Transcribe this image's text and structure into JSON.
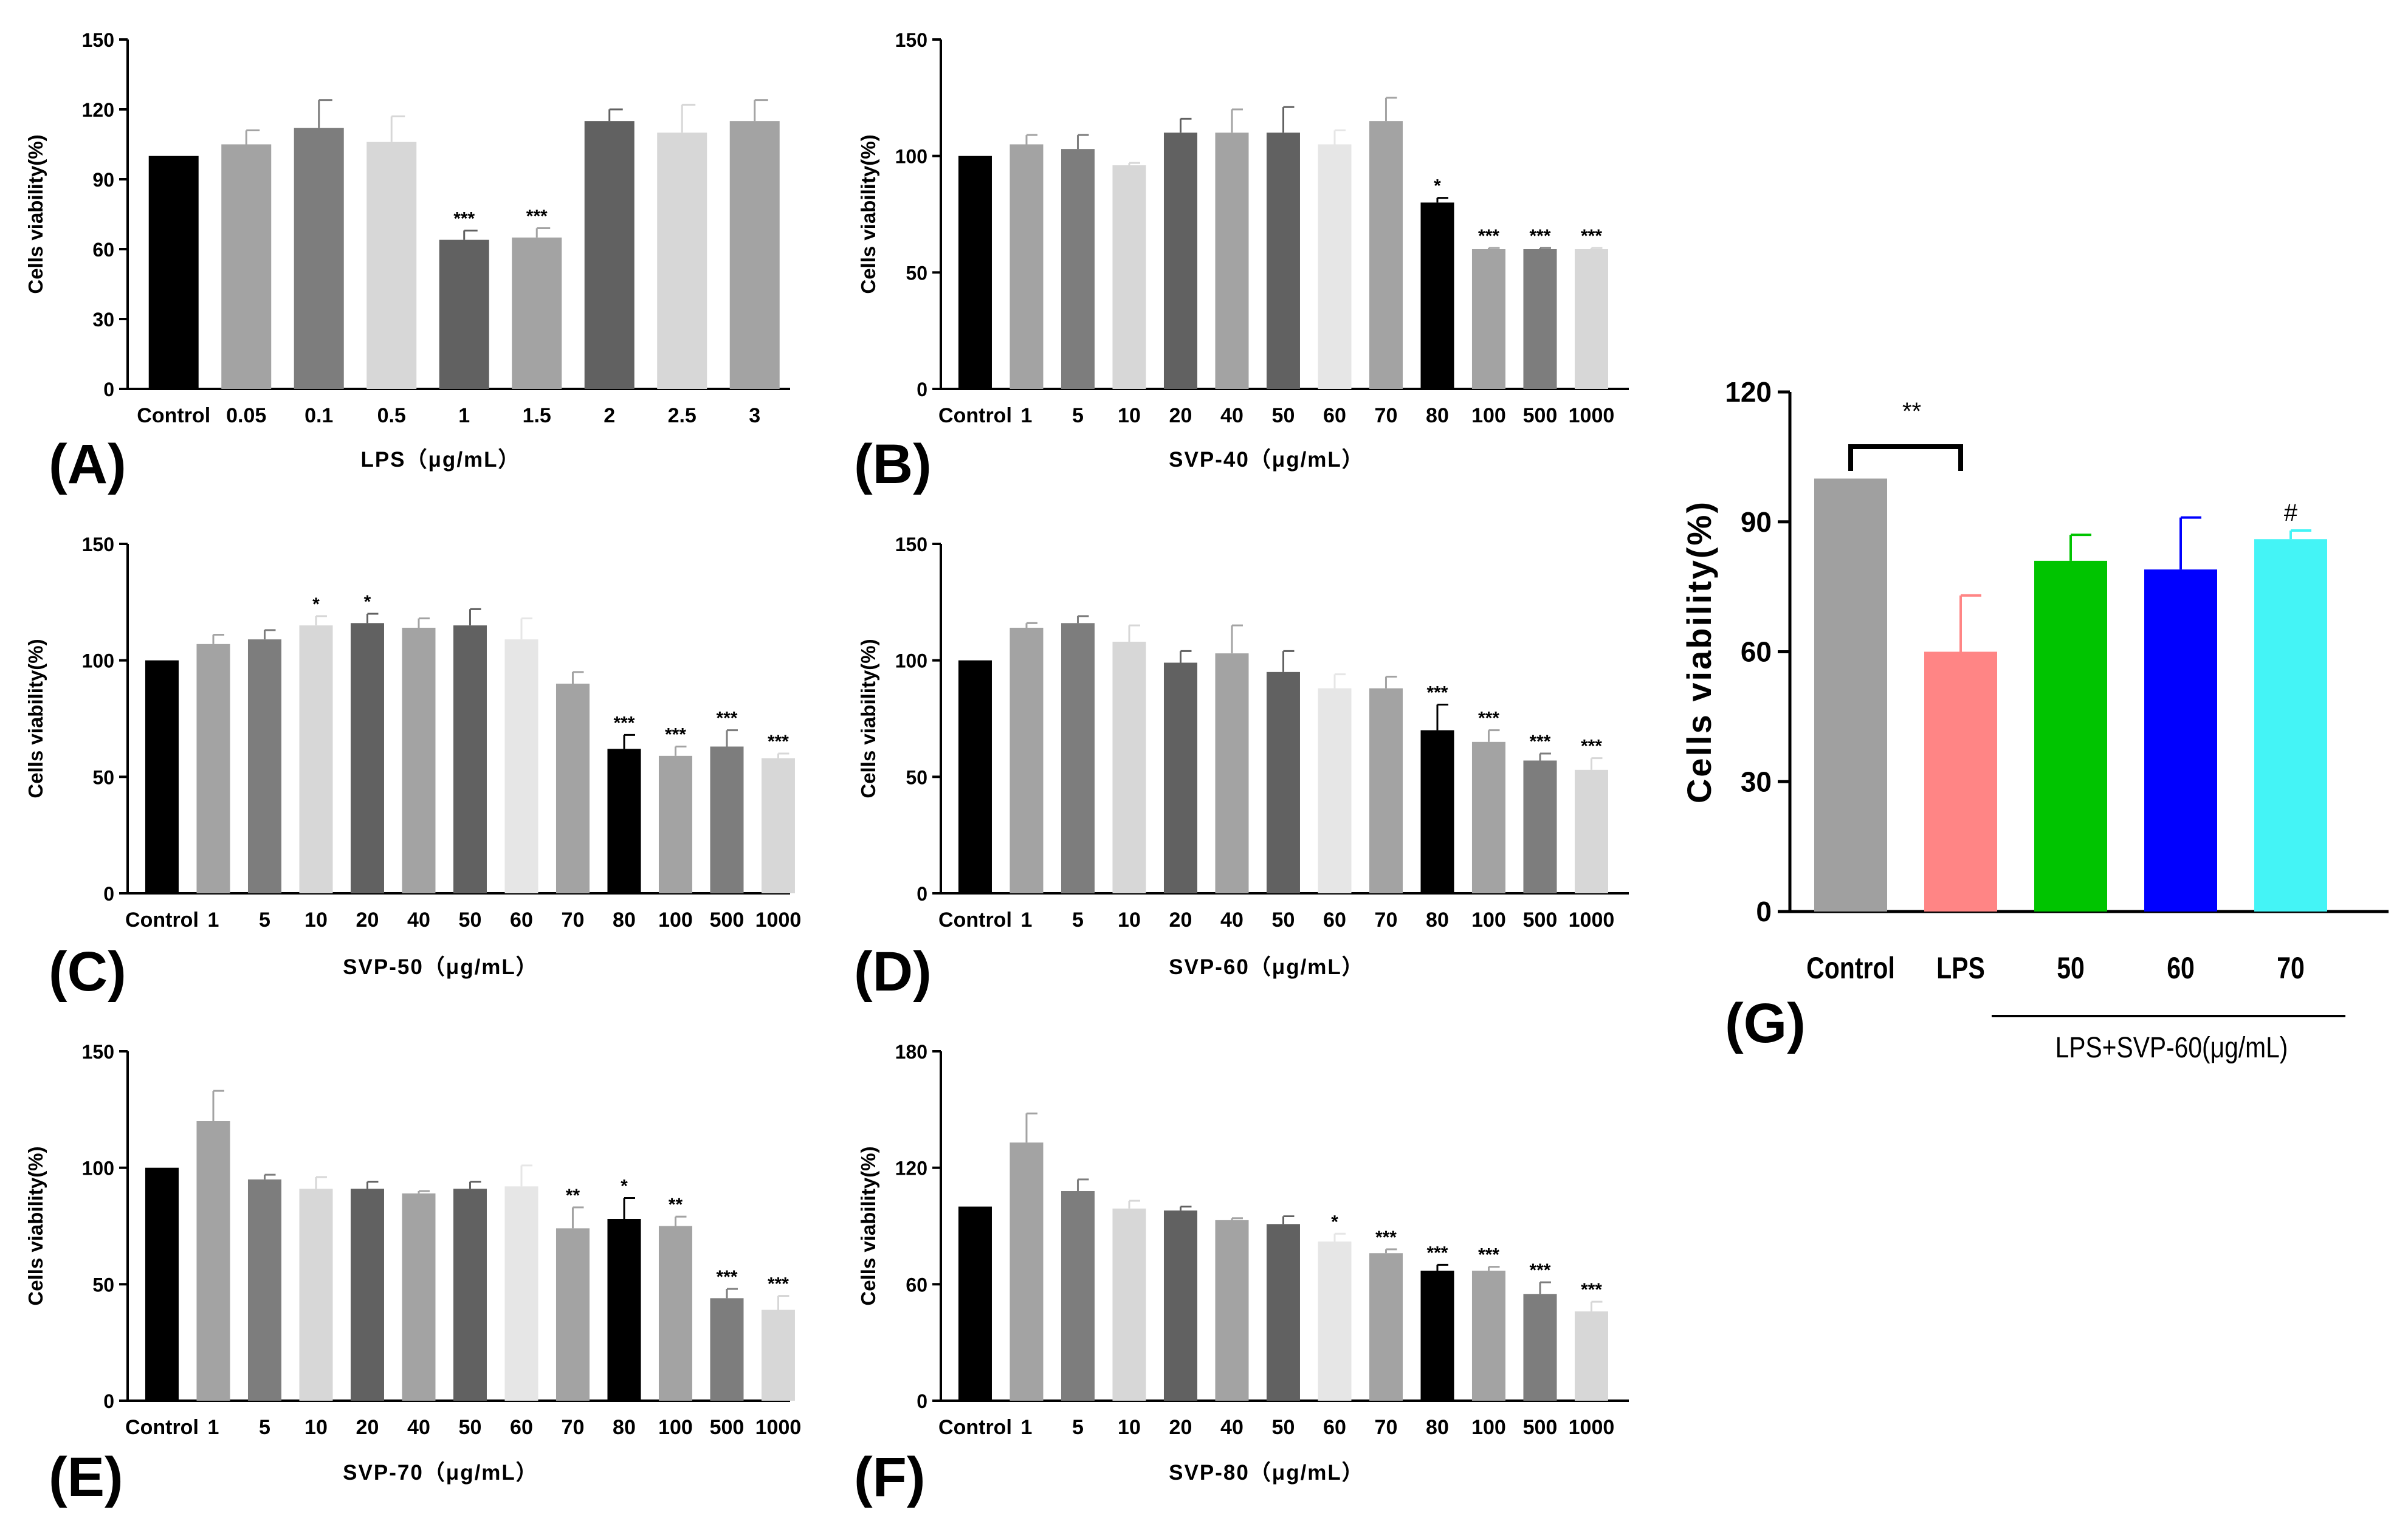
{
  "chart_data": [
    {
      "type": "bar",
      "panel": "(A)",
      "xlabel": "LPS（μg/mL）",
      "ylabel": "Cells viability(%)",
      "ylim": [
        0,
        150
      ],
      "yticks": [
        0,
        30,
        60,
        90,
        120,
        150
      ],
      "categories": [
        "Control",
        "0.05",
        "0.1",
        "0.5",
        "1",
        "1.5",
        "2",
        "2.5",
        "3"
      ],
      "values": [
        100,
        105,
        112,
        106,
        64,
        65,
        115,
        110,
        115
      ],
      "errors": [
        0,
        6,
        12,
        11,
        4,
        4,
        5,
        12,
        9
      ],
      "significance": [
        "",
        "",
        "",
        "",
        "***",
        "***",
        "",
        "",
        ""
      ],
      "colors": [
        "#000000",
        "#a3a3a3",
        "#7d7d7d",
        "#d7d7d7",
        "#616161",
        "#a3a3a3",
        "#616161",
        "#d7d7d7",
        "#a3a3a3"
      ]
    },
    {
      "type": "bar",
      "panel": "(B)",
      "xlabel": "SVP-40（μg/mL）",
      "ylabel": "Cells viability(%)",
      "ylim": [
        0,
        150
      ],
      "yticks": [
        0,
        50,
        100,
        150
      ],
      "categories": [
        "Control",
        "1",
        "5",
        "10",
        "20",
        "40",
        "50",
        "60",
        "70",
        "80",
        "100",
        "500",
        "1000"
      ],
      "values": [
        100,
        105,
        103,
        96,
        110,
        110,
        110,
        105,
        115,
        80,
        60,
        60,
        60
      ],
      "errors": [
        0,
        4,
        6,
        1,
        6,
        10,
        11,
        6,
        10,
        2,
        0.5,
        0.5,
        0.5
      ],
      "significance": [
        "",
        "",
        "",
        "",
        "",
        "",
        "",
        "",
        "",
        "*",
        "***",
        "***",
        "***"
      ],
      "colors": [
        "#000000",
        "#a3a3a3",
        "#7d7d7d",
        "#d7d7d7",
        "#616161",
        "#a3a3a3",
        "#616161",
        "#e6e6e6",
        "#a3a3a3",
        "#000000",
        "#a3a3a3",
        "#7d7d7d",
        "#d7d7d7"
      ]
    },
    {
      "type": "bar",
      "panel": "(C)",
      "xlabel": "SVP-50（μg/mL）",
      "ylabel": "Cells viability(%)",
      "ylim": [
        0,
        150
      ],
      "yticks": [
        0,
        50,
        100,
        150
      ],
      "categories": [
        "Control",
        "1",
        "5",
        "10",
        "20",
        "40",
        "50",
        "60",
        "70",
        "80",
        "100",
        "500",
        "1000"
      ],
      "values": [
        100,
        107,
        109,
        115,
        116,
        114,
        115,
        109,
        90,
        62,
        59,
        63,
        58
      ],
      "errors": [
        0,
        4,
        4,
        4,
        4,
        4,
        7,
        9,
        5,
        6,
        4,
        7,
        2
      ],
      "significance": [
        "",
        "",
        "",
        "*",
        "*",
        "",
        "",
        "",
        "",
        "***",
        "***",
        "***",
        "***"
      ],
      "colors": [
        "#000000",
        "#a3a3a3",
        "#7d7d7d",
        "#d7d7d7",
        "#616161",
        "#a3a3a3",
        "#616161",
        "#e6e6e6",
        "#a3a3a3",
        "#000000",
        "#a3a3a3",
        "#7d7d7d",
        "#d7d7d7"
      ]
    },
    {
      "type": "bar",
      "panel": "(D)",
      "xlabel": "SVP-60（μg/mL）",
      "ylabel": "Cells viability(%)",
      "ylim": [
        0,
        150
      ],
      "yticks": [
        0,
        50,
        100,
        150
      ],
      "categories": [
        "Control",
        "1",
        "5",
        "10",
        "20",
        "40",
        "50",
        "60",
        "70",
        "80",
        "100",
        "500",
        "1000"
      ],
      "values": [
        100,
        114,
        116,
        108,
        99,
        103,
        95,
        88,
        88,
        70,
        65,
        57,
        53
      ],
      "errors": [
        0,
        2,
        3,
        7,
        5,
        12,
        9,
        6,
        5,
        11,
        5,
        3,
        5
      ],
      "significance": [
        "",
        "",
        "",
        "",
        "",
        "",
        "",
        "",
        "",
        "***",
        "***",
        "***",
        "***"
      ],
      "colors": [
        "#000000",
        "#a3a3a3",
        "#7d7d7d",
        "#d7d7d7",
        "#616161",
        "#a3a3a3",
        "#616161",
        "#e6e6e6",
        "#a3a3a3",
        "#000000",
        "#a3a3a3",
        "#7d7d7d",
        "#d7d7d7"
      ]
    },
    {
      "type": "bar",
      "panel": "(E)",
      "xlabel": "SVP-70（μg/mL）",
      "ylabel": "Cells viability(%)",
      "ylim": [
        0,
        150
      ],
      "yticks": [
        0,
        50,
        100,
        150
      ],
      "categories": [
        "Control",
        "1",
        "5",
        "10",
        "20",
        "40",
        "50",
        "60",
        "70",
        "80",
        "100",
        "500",
        "1000"
      ],
      "values": [
        100,
        120,
        95,
        91,
        91,
        89,
        91,
        92,
        74,
        78,
        75,
        44,
        39
      ],
      "errors": [
        0,
        13,
        2,
        5,
        3,
        1,
        3,
        9,
        9,
        9,
        4,
        4,
        6
      ],
      "significance": [
        "",
        "",
        "",
        "",
        "",
        "",
        "",
        "",
        "**",
        "*",
        "**",
        "***",
        "***"
      ],
      "colors": [
        "#000000",
        "#a3a3a3",
        "#7d7d7d",
        "#d7d7d7",
        "#616161",
        "#a3a3a3",
        "#616161",
        "#e6e6e6",
        "#a3a3a3",
        "#000000",
        "#a3a3a3",
        "#7d7d7d",
        "#d7d7d7"
      ]
    },
    {
      "type": "bar",
      "panel": "(F)",
      "xlabel": "SVP-80（μg/mL）",
      "ylabel": "Cells viability(%)",
      "ylim": [
        0,
        180
      ],
      "yticks": [
        0,
        60,
        120,
        180
      ],
      "categories": [
        "Control",
        "1",
        "5",
        "10",
        "20",
        "40",
        "50",
        "60",
        "70",
        "80",
        "100",
        "500",
        "1000"
      ],
      "values": [
        100,
        133,
        108,
        99,
        98,
        93,
        91,
        82,
        76,
        67,
        67,
        55,
        46
      ],
      "errors": [
        0,
        15,
        6,
        4,
        2,
        1,
        4,
        4,
        2,
        3,
        2,
        6,
        5
      ],
      "significance": [
        "",
        "",
        "",
        "",
        "",
        "",
        "",
        "*",
        "***",
        "***",
        "***",
        "***",
        "***"
      ],
      "colors": [
        "#000000",
        "#a3a3a3",
        "#7d7d7d",
        "#d7d7d7",
        "#616161",
        "#a3a3a3",
        "#616161",
        "#e6e6e6",
        "#a3a3a3",
        "#000000",
        "#a3a3a3",
        "#7d7d7d",
        "#d7d7d7"
      ]
    },
    {
      "type": "bar",
      "panel": "(G)",
      "xlabel": "LPS+SVP-60(μg/mL)",
      "ylabel": "Cells viability(%)",
      "ylim": [
        0,
        120
      ],
      "yticks": [
        0,
        30,
        60,
        90,
        120
      ],
      "categories": [
        "Control",
        "LPS",
        "50",
        "60",
        "70"
      ],
      "values": [
        100,
        60,
        81,
        79,
        86
      ],
      "errors": [
        0,
        13,
        6,
        12,
        2
      ],
      "significance": [
        "",
        "",
        "",
        "",
        "#"
      ],
      "bracket_label": "**",
      "colors": [
        "#a0a0a0",
        "#ff8585",
        "#00c400",
        "#0000ff",
        "#44f4f6"
      ]
    }
  ]
}
